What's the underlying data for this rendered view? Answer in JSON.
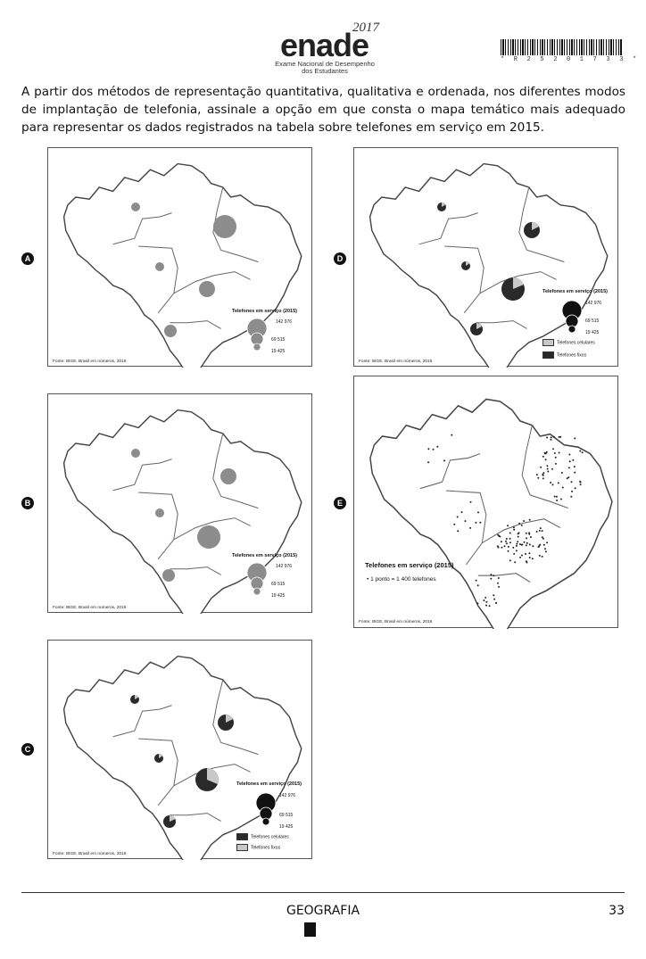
{
  "header": {
    "logo_word": "enade",
    "logo_year": "2017",
    "logo_subtitle_1": "Exame Nacional de Desempenho",
    "logo_subtitle_2": "dos Estudantes",
    "barcode_text": "* R 2 5 2 0 1 7 3 3 *"
  },
  "question": {
    "text": "A partir dos métodos de representação quantitativa, qualitativa e ordenada, nos diferentes modos de implantação de telefonia, assinale a opção em que consta o mapa temático mais adequado para representar os dados registrados na tabela sobre telefones em serviço em 2015."
  },
  "options": {
    "a": {
      "letter": "A",
      "legend_title": "Telefones em serviço (2015)",
      "values": [
        "142 976",
        "69 515",
        "19 425"
      ],
      "source": "Fonte: IBGE, Brasil em números, 2016",
      "fill_color": "#8c8c8c"
    },
    "b": {
      "letter": "B",
      "legend_title": "Telefones em serviço (2015)",
      "values": [
        "142 976",
        "69 515",
        "19 425"
      ],
      "source": "Fonte: IBGE, Brasil em numeros, 2016",
      "fill_color": "#8c8c8c"
    },
    "c": {
      "letter": "C",
      "legend_title": "Telefones em serviço (2015)",
      "values": [
        "142 976",
        "69 515",
        "19 425"
      ],
      "swatch_dark_label": "Telefones celulares",
      "swatch_light_label": "Telefones fixos",
      "source": "Fonte: IBGE, Brasil em números, 2016",
      "dark_color": "#2a2a2a",
      "light_color": "#c8c8c8"
    },
    "d": {
      "letter": "D",
      "legend_title": "Telefones em serviço (2015)",
      "values": [
        "142 976",
        "69 515",
        "19 425"
      ],
      "swatch_light_label": "Telefones celulares",
      "swatch_dark_label": "Telefones fixos",
      "source": "Fonte: IBGE, Brasil em números, 2016",
      "dark_color": "#2a2a2a",
      "light_color": "#c8c8c8"
    },
    "e": {
      "letter": "E",
      "legend_title": "Telefones em serviço (2015)",
      "legend_item": "• 1 ponto = 1 400 telefones",
      "source": "Fonte: IBGE, Brasil em números, 2016"
    }
  },
  "footer": {
    "subject": "GEOGRAFIA",
    "page_number": "33"
  }
}
